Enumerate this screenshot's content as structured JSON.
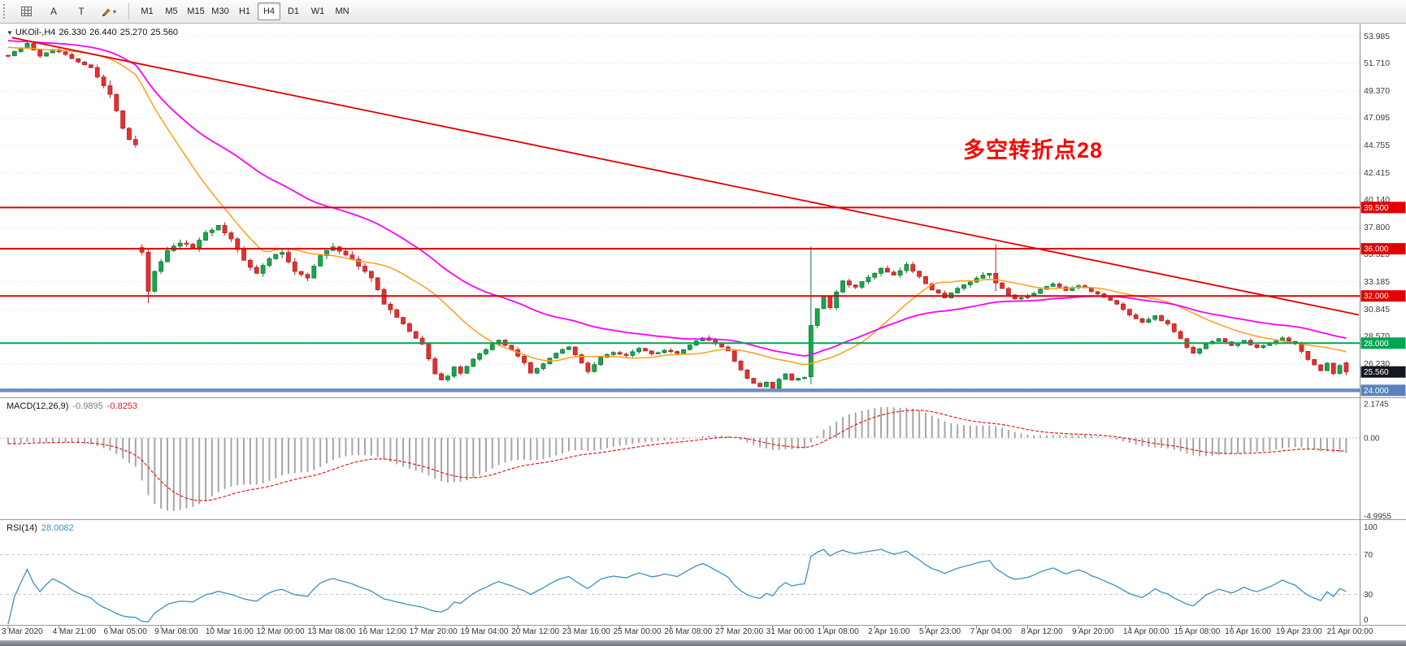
{
  "toolbar": {
    "tools": [
      {
        "id": "grid",
        "icon_name": "grid-icon"
      },
      {
        "id": "arrow",
        "icon_name": "arrow-tool-icon",
        "glyph": "A"
      },
      {
        "id": "text",
        "icon_name": "text-tool-icon",
        "glyph": "T"
      },
      {
        "id": "paint",
        "icon_name": "paint-icon",
        "dropdown": true
      }
    ],
    "timeframes": [
      "M1",
      "M5",
      "M15",
      "M30",
      "H1",
      "H4",
      "D1",
      "W1",
      "MN"
    ],
    "active_timeframe": "H4"
  },
  "main_chart": {
    "title_symbol": "UKOil-,H4",
    "ohlc": {
      "open": "26.330",
      "high": "26.440",
      "low": "25.270",
      "close": "25.560"
    },
    "annotation": "多空转折点28",
    "annotation_color": "#ff0000",
    "price_axis": [
      {
        "label": "53.985",
        "value": 53.985
      },
      {
        "label": "51.710",
        "value": 51.71
      },
      {
        "label": "49.370",
        "value": 49.37
      },
      {
        "label": "47.095",
        "value": 47.095
      },
      {
        "label": "44.755",
        "value": 44.755
      },
      {
        "label": "42.415",
        "value": 42.415
      },
      {
        "label": "40.140",
        "value": 40.14
      },
      {
        "label": "37.800",
        "value": 37.8
      },
      {
        "label": "35.525",
        "value": 35.525
      },
      {
        "label": "33.185",
        "value": 33.185
      },
      {
        "label": "30.845",
        "value": 30.845
      },
      {
        "label": "28.570",
        "value": 28.57
      },
      {
        "label": "26.230",
        "value": 26.23
      },
      {
        "label": "23.890",
        "value": 23.89
      }
    ],
    "levels": [
      {
        "price": 39.5,
        "label": "39.500",
        "color": "#e00000",
        "band": false
      },
      {
        "price": 36.0,
        "label": "36.000",
        "color": "#e00000",
        "band": false
      },
      {
        "price": 32.0,
        "label": "32.000",
        "color": "#e00000",
        "band": false
      },
      {
        "price": 28.0,
        "label": "28.000",
        "color": "#00a651",
        "band": false
      },
      {
        "price": 24.0,
        "label": "24.000",
        "color": "#5b82bd",
        "band": true
      }
    ],
    "current_price": {
      "label": "25.560",
      "value": 25.56,
      "badge_color": "#15181d"
    }
  },
  "macd_panel": {
    "header": "MACD(12,26,9)",
    "macd_value": "-0.9895",
    "signal_value": "-0.8253",
    "axis": [
      {
        "label": "2.1745",
        "value": 2.1745
      },
      {
        "label": "0.00",
        "value": 0
      },
      {
        "label": "-4.9955",
        "value": -4.9955
      }
    ]
  },
  "rsi_panel": {
    "header": "RSI(14)",
    "value": "28.0082",
    "levels": [
      70,
      30
    ],
    "axis": [
      {
        "label": "100",
        "value": 100
      },
      {
        "label": "70",
        "value": 70
      },
      {
        "label": "30",
        "value": 30
      },
      {
        "label": "0",
        "value": 0
      }
    ]
  },
  "time_axis": {
    "labels": [
      "3 Mar 2020",
      "4 Mar 21:00",
      "6 Mar 05:00",
      "9 Mar 08:00",
      "10 Mar 16:00",
      "12 Mar 00:00",
      "13 Mar 08:00",
      "16 Mar 12:00",
      "17 Mar 20:00",
      "19 Mar 04:00",
      "20 Mar 12:00",
      "23 Mar 16:00",
      "25 Mar 00:00",
      "26 Mar 08:00",
      "27 Mar 20:00",
      "31 Mar 00:00",
      "1 Apr 08:00",
      "2 Apr 16:00",
      "5 Apr 23:00",
      "7 Apr 04:00",
      "8 Apr 12:00",
      "9 Apr 20:00",
      "14 Apr 00:00",
      "15 Apr 08:00",
      "16 Apr 16:00",
      "19 Apr 23:00",
      "21 Apr 00:00"
    ]
  },
  "chart_data": {
    "type": "candlestick",
    "symbol": "UKOil-",
    "period": "H4",
    "candle_count": 211,
    "seed": 1337,
    "waypoints": [
      [
        0,
        52.4
      ],
      [
        2,
        53.0
      ],
      [
        3,
        53.4
      ],
      [
        5,
        52.3
      ],
      [
        7,
        52.9
      ],
      [
        9,
        52.5
      ],
      [
        11,
        51.8
      ],
      [
        13,
        51.4
      ],
      [
        14,
        50.6
      ],
      [
        15,
        49.8
      ],
      [
        16,
        49.0
      ],
      [
        17,
        47.8
      ],
      [
        18,
        46.3
      ],
      [
        19,
        45.3
      ],
      [
        20,
        44.9
      ],
      [
        21,
        35.7
      ],
      [
        22,
        32.4
      ],
      [
        23,
        34.0
      ],
      [
        25,
        35.8
      ],
      [
        27,
        36.5
      ],
      [
        29,
        36.1
      ],
      [
        31,
        37.4
      ],
      [
        33,
        37.9
      ],
      [
        35,
        36.8
      ],
      [
        37,
        35.1
      ],
      [
        39,
        33.9
      ],
      [
        41,
        35.2
      ],
      [
        43,
        35.7
      ],
      [
        45,
        34.1
      ],
      [
        47,
        33.6
      ],
      [
        49,
        35.4
      ],
      [
        51,
        36.2
      ],
      [
        53,
        35.5
      ],
      [
        55,
        34.6
      ],
      [
        57,
        33.5
      ],
      [
        59,
        31.4
      ],
      [
        61,
        30.2
      ],
      [
        63,
        29.0
      ],
      [
        65,
        27.9
      ],
      [
        66,
        26.7
      ],
      [
        67,
        25.4
      ],
      [
        68,
        24.9
      ],
      [
        69,
        25.2
      ],
      [
        70,
        26.0
      ],
      [
        71,
        25.4
      ],
      [
        73,
        26.6
      ],
      [
        75,
        27.5
      ],
      [
        77,
        28.2
      ],
      [
        79,
        27.4
      ],
      [
        81,
        26.3
      ],
      [
        82,
        25.5
      ],
      [
        84,
        26.2
      ],
      [
        86,
        27.2
      ],
      [
        88,
        27.7
      ],
      [
        90,
        26.3
      ],
      [
        91,
        25.6
      ],
      [
        93,
        26.8
      ],
      [
        95,
        27.2
      ],
      [
        97,
        27.0
      ],
      [
        99,
        27.6
      ],
      [
        101,
        27.1
      ],
      [
        103,
        27.4
      ],
      [
        105,
        27.1
      ],
      [
        107,
        27.8
      ],
      [
        109,
        28.5
      ],
      [
        111,
        28.0
      ],
      [
        113,
        27.3
      ],
      [
        114,
        26.5
      ],
      [
        115,
        25.7
      ],
      [
        116,
        25.0
      ],
      [
        117,
        24.6
      ],
      [
        118,
        24.3
      ],
      [
        119,
        24.7
      ],
      [
        120,
        24.2
      ],
      [
        121,
        24.9
      ],
      [
        122,
        25.4
      ],
      [
        123,
        24.9
      ],
      [
        125,
        25.1
      ],
      [
        126,
        29.5
      ],
      [
        127,
        30.9
      ],
      [
        128,
        31.9
      ],
      [
        129,
        31.0
      ],
      [
        130,
        32.3
      ],
      [
        131,
        33.3
      ],
      [
        133,
        32.7
      ],
      [
        135,
        33.6
      ],
      [
        137,
        34.3
      ],
      [
        139,
        33.7
      ],
      [
        141,
        34.6
      ],
      [
        143,
        33.7
      ],
      [
        145,
        32.5
      ],
      [
        147,
        31.9
      ],
      [
        149,
        32.6
      ],
      [
        151,
        33.2
      ],
      [
        153,
        33.7
      ],
      [
        154,
        33.9
      ],
      [
        155,
        33.1
      ],
      [
        156,
        32.6
      ],
      [
        158,
        31.7
      ],
      [
        160,
        31.9
      ],
      [
        162,
        32.6
      ],
      [
        164,
        33.0
      ],
      [
        166,
        32.5
      ],
      [
        168,
        32.9
      ],
      [
        170,
        32.4
      ],
      [
        172,
        31.9
      ],
      [
        174,
        31.3
      ],
      [
        176,
        30.4
      ],
      [
        178,
        29.8
      ],
      [
        180,
        30.3
      ],
      [
        182,
        29.6
      ],
      [
        184,
        28.4
      ],
      [
        185,
        27.6
      ],
      [
        186,
        27.2
      ],
      [
        188,
        27.9
      ],
      [
        190,
        28.4
      ],
      [
        192,
        27.8
      ],
      [
        194,
        28.2
      ],
      [
        196,
        27.6
      ],
      [
        198,
        28.0
      ],
      [
        200,
        28.4
      ],
      [
        202,
        27.9
      ],
      [
        203,
        27.3
      ],
      [
        204,
        26.6
      ],
      [
        205,
        26.2
      ],
      [
        206,
        25.7
      ],
      [
        207,
        26.3
      ],
      [
        208,
        25.4
      ],
      [
        209,
        26.1
      ],
      [
        210,
        25.56
      ]
    ],
    "volatility_zones": [
      [
        0,
        13,
        0.35
      ],
      [
        14,
        23,
        0.85
      ],
      [
        24,
        60,
        0.7
      ],
      [
        61,
        113,
        0.4
      ],
      [
        114,
        125,
        0.3
      ],
      [
        126,
        160,
        0.5
      ],
      [
        161,
        210,
        0.33
      ]
    ],
    "gap_opens": {
      "21": 36.1
    },
    "specials": {
      "22": {
        "c": 32.4,
        "l": 31.4,
        "h": 35.9
      },
      "126": {
        "o": 25.15,
        "h": 36.2,
        "l": 24.5,
        "c": 29.5
      },
      "155": {
        "h": 36.4,
        "l": 32.4,
        "c": 33.1
      },
      "210": {
        "o": 26.33,
        "h": 26.44,
        "l": 25.27,
        "c": 25.56
      }
    },
    "moving_averages": [
      {
        "name": "ma-fast",
        "type": "sma",
        "period": 20,
        "color": "#ff9f1a",
        "width": 1.5
      },
      {
        "name": "ma-slow",
        "type": "ema",
        "period": 45,
        "color": "#ff00ff",
        "width": 1.8
      }
    ],
    "trendline": {
      "start_index": 0.6,
      "start_price": 53.9,
      "end_index": 212,
      "end_price": 30.4,
      "color": "#e00000",
      "width": 1.8
    },
    "colors": {
      "candle_up_fill": "#16a84e",
      "candle_up_stroke": "#0c7a38",
      "candle_down_fill": "#e23131",
      "candle_down_stroke": "#b52222",
      "macd_histogram": "#a6a6a6",
      "macd_signal": "#e02020",
      "rsi_line": "#3f8fc5",
      "grid": "#d9d9d9"
    },
    "indicators": {
      "macd": {
        "fast": 12,
        "slow": 26,
        "signal": 9
      },
      "rsi": {
        "period": 14
      }
    }
  }
}
